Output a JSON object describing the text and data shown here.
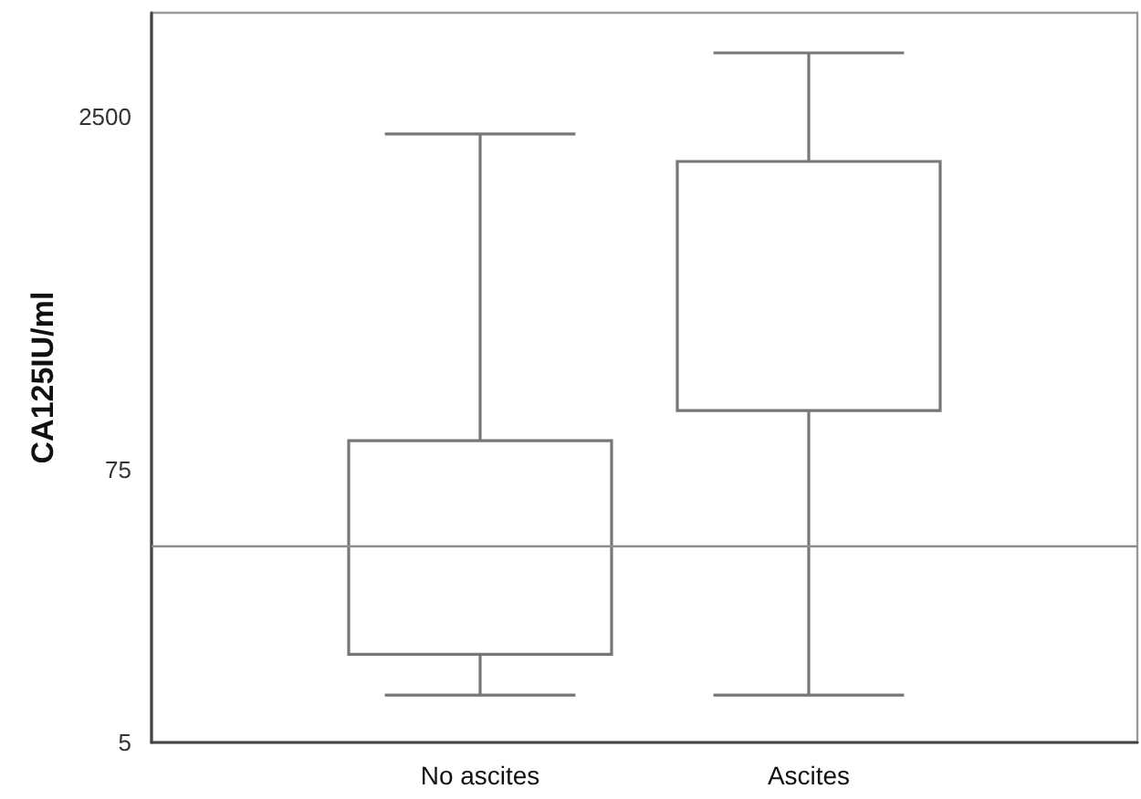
{
  "chart_data": {
    "type": "box",
    "ylabel": "CA125IU/ml",
    "categories": [
      "No ascites",
      "Ascites"
    ],
    "boxes": [
      {
        "low": 8,
        "q1": 12,
        "median": null,
        "q3": 100,
        "high": 2100
      },
      {
        "low": 8,
        "q1": 135,
        "median": null,
        "q3": 1600,
        "high": 4700
      }
    ],
    "color": "#777777",
    "log": true,
    "ylim": [
      5,
      7000
    ],
    "yticks": [
      5,
      75,
      2500
    ],
    "ref_lines": [
      {
        "axis": "y",
        "value": 35,
        "color": "#8c8c8c"
      }
    ]
  }
}
